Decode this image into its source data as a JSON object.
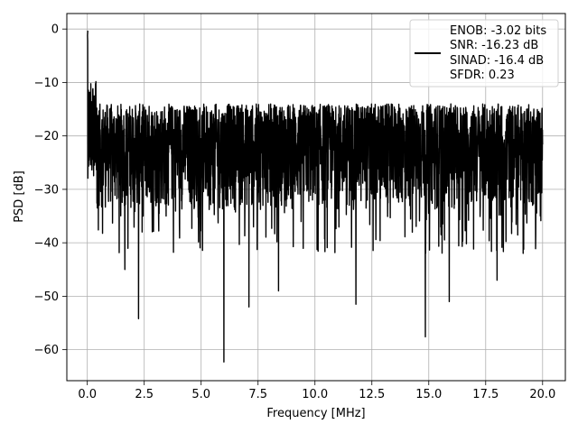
{
  "chart_data": {
    "type": "line",
    "title": "",
    "xlabel": "Frequency [MHz]",
    "ylabel": "PSD [dB]",
    "xlim": [
      -0.9,
      21.0
    ],
    "ylim": [
      -65.8,
      2.9
    ],
    "xticks": [
      0.0,
      2.5,
      5.0,
      7.5,
      10.0,
      12.5,
      15.0,
      17.5,
      20.0
    ],
    "xtick_labels": [
      "0.0",
      "2.5",
      "5.0",
      "7.5",
      "10.0",
      "12.5",
      "15.0",
      "17.5",
      "20.0"
    ],
    "yticks": [
      0,
      -10,
      -20,
      -30,
      -40,
      -50,
      -60
    ],
    "ytick_labels": [
      "0",
      "−10",
      "−20",
      "−30",
      "−40",
      "−50",
      "−60"
    ],
    "grid": true,
    "legend": {
      "placement": "top-right",
      "entries": [
        "ENOB: -3.02 bits",
        "SNR: -16.23 dB",
        "SINAD: -16.4 dB",
        "SFDR: 0.23"
      ]
    },
    "series": [
      {
        "color": "#000000",
        "description": "Noisy power spectral density: peak near 0 dB at DC, noise floor mostly between about -35 and -13 dB from 0 to 20 MHz, with deep nulls.",
        "x_range": [
          0,
          20
        ],
        "peak": {
          "x": 0.02,
          "y": -0.3
        },
        "upper_envelope_db": -14,
        "lower_envelope_db": -34,
        "notable_minima": [
          {
            "x": 2.25,
            "y": -54.2
          },
          {
            "x": 6.0,
            "y": -62.3
          },
          {
            "x": 7.1,
            "y": -52.0
          },
          {
            "x": 8.4,
            "y": -49.0
          },
          {
            "x": 14.85,
            "y": -57.6
          },
          {
            "x": 11.8,
            "y": -51.5
          },
          {
            "x": 1.65,
            "y": -45.0
          },
          {
            "x": 15.9,
            "y": -51.0
          },
          {
            "x": 18.0,
            "y": -47.0
          }
        ]
      }
    ]
  }
}
